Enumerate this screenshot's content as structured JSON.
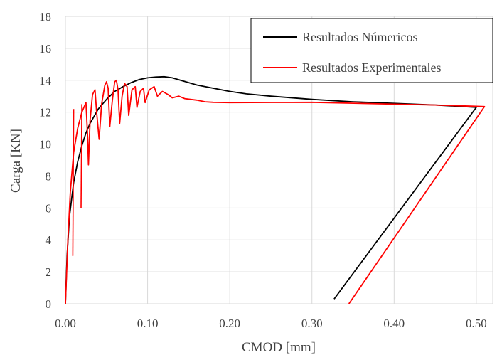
{
  "chart_data": {
    "type": "line",
    "title": "",
    "xlabel": "CMOD [mm]",
    "ylabel": "Carga [KN]",
    "xlim": [
      0,
      0.52
    ],
    "ylim": [
      0,
      18
    ],
    "x_ticks": [
      0.0,
      0.1,
      0.2,
      0.3,
      0.4,
      0.5
    ],
    "x_tick_labels": [
      "0.00",
      "0.10",
      "0.20",
      "0.30",
      "0.40",
      "0.50"
    ],
    "y_ticks": [
      0,
      2,
      4,
      6,
      8,
      10,
      12,
      14,
      16,
      18
    ],
    "y_tick_labels": [
      "0",
      "2",
      "4",
      "6",
      "8",
      "10",
      "12",
      "14",
      "16",
      "18"
    ],
    "grid": true,
    "legend_position": "top-right",
    "series": [
      {
        "name": "Resultados Númericos",
        "color": "#000000",
        "points": [
          [
            0,
            0
          ],
          [
            0.002,
            3.0
          ],
          [
            0.005,
            5.5
          ],
          [
            0.01,
            7.6
          ],
          [
            0.015,
            8.9
          ],
          [
            0.02,
            9.9
          ],
          [
            0.025,
            10.7
          ],
          [
            0.03,
            11.3
          ],
          [
            0.04,
            12.2
          ],
          [
            0.05,
            12.8
          ],
          [
            0.06,
            13.3
          ],
          [
            0.07,
            13.6
          ],
          [
            0.08,
            13.85
          ],
          [
            0.09,
            14.05
          ],
          [
            0.1,
            14.15
          ],
          [
            0.11,
            14.2
          ],
          [
            0.12,
            14.22
          ],
          [
            0.13,
            14.15
          ],
          [
            0.14,
            14.0
          ],
          [
            0.15,
            13.85
          ],
          [
            0.16,
            13.7
          ],
          [
            0.18,
            13.5
          ],
          [
            0.2,
            13.3
          ],
          [
            0.22,
            13.15
          ],
          [
            0.25,
            13.0
          ],
          [
            0.3,
            12.8
          ],
          [
            0.35,
            12.65
          ],
          [
            0.4,
            12.55
          ],
          [
            0.45,
            12.45
          ],
          [
            0.5,
            12.3
          ],
          [
            0.327,
            0.3
          ]
        ]
      },
      {
        "name": "Resultados Experimentales",
        "color": "#ff0000",
        "points": [
          [
            0,
            0
          ],
          [
            0.003,
            4.0
          ],
          [
            0.006,
            7.0
          ],
          [
            0.01,
            9.5
          ],
          [
            0.015,
            11.0
          ],
          [
            0.02,
            12.0
          ],
          [
            0.025,
            12.6
          ],
          [
            0.027,
            10.5
          ],
          [
            0.028,
            8.7
          ],
          [
            0.03,
            11.5
          ],
          [
            0.033,
            13.1
          ],
          [
            0.036,
            13.4
          ],
          [
            0.038,
            12.0
          ],
          [
            0.041,
            10.3
          ],
          [
            0.044,
            12.5
          ],
          [
            0.048,
            13.7
          ],
          [
            0.05,
            13.9
          ],
          [
            0.052,
            13.5
          ],
          [
            0.054,
            11.1
          ],
          [
            0.057,
            12.7
          ],
          [
            0.06,
            13.9
          ],
          [
            0.062,
            14.0
          ],
          [
            0.064,
            13.4
          ],
          [
            0.066,
            11.3
          ],
          [
            0.069,
            13.0
          ],
          [
            0.072,
            13.8
          ],
          [
            0.075,
            13.6
          ],
          [
            0.077,
            11.8
          ],
          [
            0.081,
            13.4
          ],
          [
            0.085,
            13.6
          ],
          [
            0.087,
            12.3
          ],
          [
            0.091,
            13.3
          ],
          [
            0.095,
            13.5
          ],
          [
            0.097,
            12.6
          ],
          [
            0.102,
            13.4
          ],
          [
            0.108,
            13.6
          ],
          [
            0.112,
            13.0
          ],
          [
            0.118,
            13.3
          ],
          [
            0.125,
            13.1
          ],
          [
            0.13,
            12.9
          ],
          [
            0.138,
            13.0
          ],
          [
            0.145,
            12.85
          ],
          [
            0.152,
            12.8
          ],
          [
            0.16,
            12.75
          ],
          [
            0.17,
            12.65
          ],
          [
            0.18,
            12.62
          ],
          [
            0.2,
            12.6
          ],
          [
            0.3,
            12.62
          ],
          [
            0.4,
            12.5
          ],
          [
            0.45,
            12.45
          ],
          [
            0.51,
            12.35
          ],
          [
            0.345,
            0.0
          ]
        ]
      }
    ],
    "spike_series": {
      "series_index": 1,
      "spikes": [
        [
          0.01,
          12.2,
          3.0
        ],
        [
          0.02,
          12.5,
          6.0
        ]
      ]
    }
  }
}
